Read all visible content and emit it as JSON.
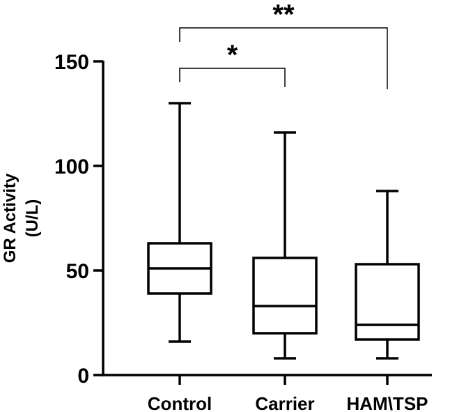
{
  "chart_data": {
    "type": "boxplot",
    "title": "",
    "xlabel": "",
    "ylabel": "GR Activity",
    "ylabel_unit": "(U/L)",
    "ylim": [
      0,
      150
    ],
    "yticks": [
      0,
      50,
      100,
      150
    ],
    "ytick_labels": [
      "0",
      "50",
      "100",
      "150"
    ],
    "categories": [
      "Control",
      "Carrier",
      "HAM\\TSP"
    ],
    "boxes": [
      {
        "category": "Control",
        "min": 16,
        "q1": 39,
        "median": 51,
        "q3": 63,
        "max": 130
      },
      {
        "category": "Carrier",
        "min": 8,
        "q1": 20,
        "median": 33,
        "q3": 56,
        "max": 116
      },
      {
        "category": "HAM\\TSP",
        "min": 8,
        "q1": 17,
        "median": 24,
        "q3": 53,
        "max": 88
      }
    ],
    "significance": [
      {
        "from": 0,
        "to": 1,
        "label": "*"
      },
      {
        "from": 0,
        "to": 2,
        "label": "**"
      }
    ],
    "grid": false,
    "color": "#000000"
  }
}
